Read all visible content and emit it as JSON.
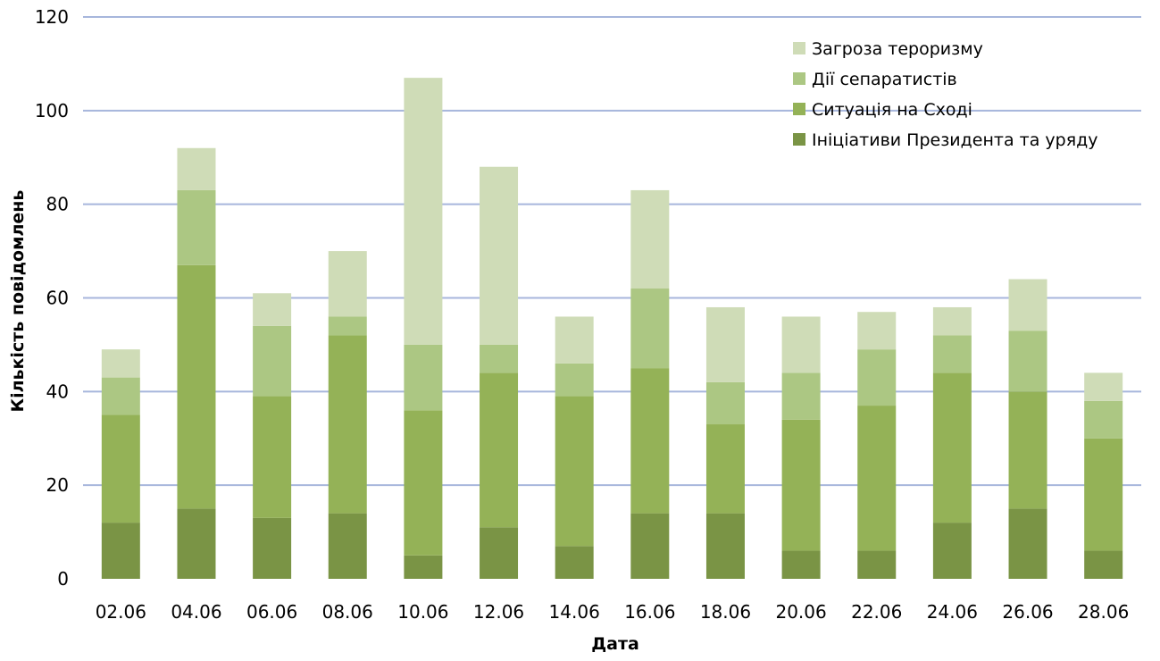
{
  "chart_data": {
    "type": "bar",
    "stacked": true,
    "categories": [
      "02.06",
      "04.06",
      "06.06",
      "08.06",
      "10.06",
      "12.06",
      "14.06",
      "16.06",
      "18.06",
      "20.06",
      "22.06",
      "24.06",
      "26.06",
      "28.06"
    ],
    "series": [
      {
        "name": "Ініціативи Президента та уряду",
        "color": "#7a9445",
        "values": [
          12,
          15,
          13,
          14,
          5,
          11,
          7,
          14,
          14,
          6,
          6,
          12,
          15,
          6
        ]
      },
      {
        "name": "Ситуація на Сході",
        "color": "#94b257",
        "values": [
          23,
          52,
          26,
          38,
          31,
          33,
          32,
          31,
          19,
          28,
          31,
          32,
          25,
          24
        ]
      },
      {
        "name": "Дії сепаратистів",
        "color": "#acc783",
        "values": [
          8,
          16,
          15,
          4,
          14,
          6,
          7,
          17,
          9,
          10,
          12,
          8,
          13,
          8
        ]
      },
      {
        "name": "Загроза тероризму",
        "color": "#cfdcb7",
        "values": [
          6,
          9,
          7,
          14,
          57,
          38,
          10,
          21,
          16,
          12,
          8,
          6,
          11,
          6
        ]
      }
    ],
    "legend_order": [
      3,
      2,
      1,
      0
    ],
    "xlabel": "Дата",
    "ylabel": "Кількість повідомлень",
    "ylim": [
      0,
      120
    ],
    "yticks": [
      "0",
      "20",
      "40",
      "60",
      "80",
      "100",
      "120"
    ],
    "grid": true,
    "grid_color": "#a7b6dc",
    "legend_position": "top-right"
  }
}
